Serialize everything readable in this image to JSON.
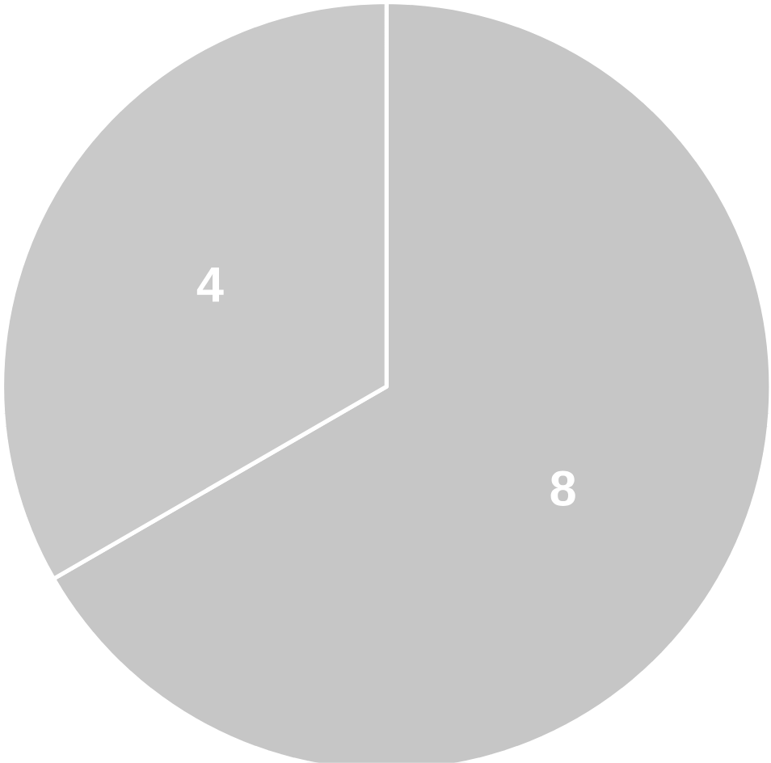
{
  "chart_data": {
    "type": "pie",
    "categories": [
      null,
      null
    ],
    "values": [
      8,
      4
    ],
    "colors": [
      "#c6c6c6",
      "#c9c9c9"
    ],
    "data_labels": true
  }
}
